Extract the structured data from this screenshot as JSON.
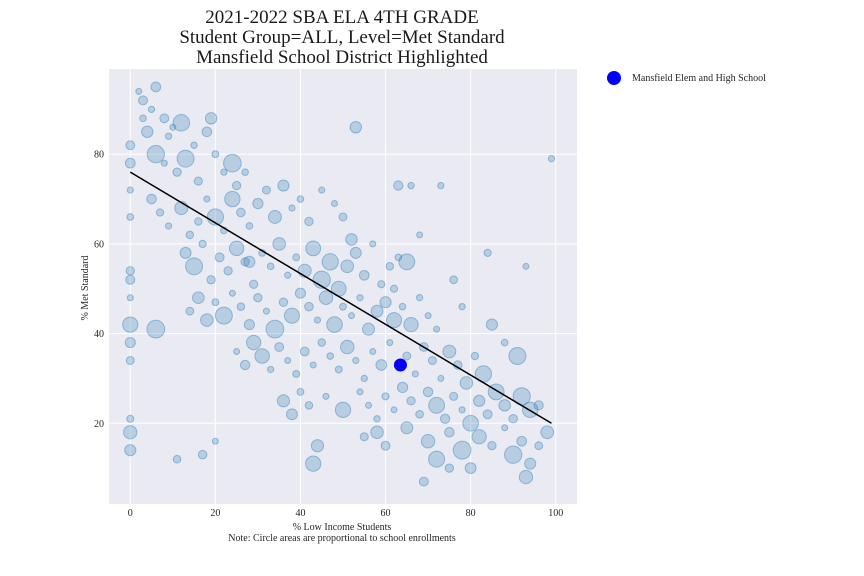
{
  "chart_data": {
    "type": "scatter",
    "title_lines": [
      "2021-2022 SBA ELA 4TH GRADE",
      "Student Group=ALL, Level=Met Standard",
      "Mansfield School District Highlighted"
    ],
    "xlabel": "% Low Income Students",
    "note": "Note: Circle areas are proportional to school enrollments",
    "ylabel": "% Met Standard",
    "xlim": [
      -5,
      105
    ],
    "ylim": [
      2,
      99
    ],
    "xticks": [
      0,
      20,
      40,
      60,
      80,
      100
    ],
    "yticks": [
      20,
      40,
      60,
      80
    ],
    "grid": true,
    "legend_position": "outside-right-top",
    "colors": {
      "background": "#eaeaf2",
      "grid": "#ffffff",
      "points": "#1f77b4",
      "highlight": "#0000ff",
      "trendline": "#000000"
    },
    "trendline": {
      "x": [
        0,
        99
      ],
      "y": [
        76,
        20
      ]
    },
    "highlight": {
      "name": "Mansfield Elem and High School",
      "x": 63.5,
      "y": 33
    },
    "series": [
      {
        "points": [
          [
            0,
            82
          ],
          [
            0,
            78
          ],
          [
            0,
            72
          ],
          [
            0,
            66
          ],
          [
            0,
            54
          ],
          [
            0,
            52
          ],
          [
            0,
            48
          ],
          [
            0,
            42
          ],
          [
            0,
            38
          ],
          [
            0,
            34
          ],
          [
            0,
            21
          ],
          [
            0,
            18
          ],
          [
            0,
            14
          ],
          [
            2,
            94
          ],
          [
            3,
            92
          ],
          [
            3,
            88
          ],
          [
            4,
            85
          ],
          [
            5,
            90
          ],
          [
            6,
            95
          ],
          [
            8,
            88
          ],
          [
            9,
            84
          ],
          [
            10,
            86
          ],
          [
            12,
            87
          ],
          [
            6,
            80
          ],
          [
            8,
            78
          ],
          [
            11,
            76
          ],
          [
            13,
            79
          ],
          [
            15,
            82
          ],
          [
            16,
            74
          ],
          [
            18,
            85
          ],
          [
            19,
            88
          ],
          [
            20,
            80
          ],
          [
            22,
            76
          ],
          [
            24,
            78
          ],
          [
            25,
            73
          ],
          [
            27,
            76
          ],
          [
            5,
            70
          ],
          [
            7,
            67
          ],
          [
            9,
            64
          ],
          [
            12,
            68
          ],
          [
            14,
            62
          ],
          [
            16,
            65
          ],
          [
            18,
            70
          ],
          [
            20,
            66
          ],
          [
            22,
            63
          ],
          [
            24,
            70
          ],
          [
            26,
            67
          ],
          [
            28,
            64
          ],
          [
            30,
            69
          ],
          [
            32,
            72
          ],
          [
            34,
            66
          ],
          [
            36,
            73
          ],
          [
            38,
            68
          ],
          [
            40,
            70
          ],
          [
            42,
            65
          ],
          [
            45,
            72
          ],
          [
            48,
            69
          ],
          [
            50,
            66
          ],
          [
            52,
            61
          ],
          [
            13,
            58
          ],
          [
            15,
            55
          ],
          [
            17,
            60
          ],
          [
            19,
            52
          ],
          [
            21,
            57
          ],
          [
            23,
            54
          ],
          [
            25,
            59
          ],
          [
            27,
            56
          ],
          [
            29,
            51
          ],
          [
            31,
            58
          ],
          [
            33,
            55
          ],
          [
            35,
            60
          ],
          [
            37,
            53
          ],
          [
            39,
            57
          ],
          [
            41,
            54
          ],
          [
            43,
            59
          ],
          [
            45,
            52
          ],
          [
            47,
            56
          ],
          [
            49,
            50
          ],
          [
            51,
            55
          ],
          [
            53,
            58
          ],
          [
            55,
            53
          ],
          [
            57,
            60
          ],
          [
            59,
            51
          ],
          [
            61,
            55
          ],
          [
            63,
            57
          ],
          [
            14,
            45
          ],
          [
            16,
            48
          ],
          [
            18,
            43
          ],
          [
            20,
            47
          ],
          [
            22,
            44
          ],
          [
            24,
            49
          ],
          [
            26,
            46
          ],
          [
            28,
            42
          ],
          [
            30,
            48
          ],
          [
            32,
            45
          ],
          [
            34,
            41
          ],
          [
            36,
            47
          ],
          [
            38,
            44
          ],
          [
            40,
            49
          ],
          [
            42,
            46
          ],
          [
            44,
            43
          ],
          [
            46,
            48
          ],
          [
            48,
            42
          ],
          [
            50,
            46
          ],
          [
            52,
            44
          ],
          [
            54,
            48
          ],
          [
            56,
            41
          ],
          [
            58,
            45
          ],
          [
            60,
            47
          ],
          [
            62,
            43
          ],
          [
            64,
            46
          ],
          [
            66,
            42
          ],
          [
            68,
            48
          ],
          [
            70,
            44
          ],
          [
            72,
            41
          ],
          [
            25,
            36
          ],
          [
            27,
            33
          ],
          [
            29,
            38
          ],
          [
            31,
            35
          ],
          [
            33,
            32
          ],
          [
            35,
            37
          ],
          [
            37,
            34
          ],
          [
            39,
            31
          ],
          [
            41,
            36
          ],
          [
            43,
            33
          ],
          [
            45,
            38
          ],
          [
            47,
            35
          ],
          [
            49,
            32
          ],
          [
            51,
            37
          ],
          [
            53,
            34
          ],
          [
            55,
            30
          ],
          [
            57,
            36
          ],
          [
            59,
            33
          ],
          [
            61,
            38
          ],
          [
            65,
            35
          ],
          [
            67,
            31
          ],
          [
            69,
            37
          ],
          [
            71,
            34
          ],
          [
            73,
            30
          ],
          [
            75,
            36
          ],
          [
            77,
            33
          ],
          [
            79,
            29
          ],
          [
            81,
            35
          ],
          [
            83,
            31
          ],
          [
            36,
            25
          ],
          [
            38,
            22
          ],
          [
            40,
            27
          ],
          [
            42,
            24
          ],
          [
            46,
            26
          ],
          [
            50,
            23
          ],
          [
            54,
            27
          ],
          [
            56,
            24
          ],
          [
            58,
            21
          ],
          [
            60,
            26
          ],
          [
            62,
            23
          ],
          [
            64,
            28
          ],
          [
            66,
            25
          ],
          [
            68,
            22
          ],
          [
            70,
            27
          ],
          [
            72,
            24
          ],
          [
            74,
            21
          ],
          [
            76,
            26
          ],
          [
            78,
            23
          ],
          [
            80,
            20
          ],
          [
            82,
            25
          ],
          [
            84,
            22
          ],
          [
            86,
            27
          ],
          [
            88,
            24
          ],
          [
            90,
            21
          ],
          [
            92,
            26
          ],
          [
            94,
            23
          ],
          [
            55,
            17
          ],
          [
            60,
            15
          ],
          [
            65,
            19
          ],
          [
            70,
            16
          ],
          [
            72,
            12
          ],
          [
            75,
            18
          ],
          [
            78,
            14
          ],
          [
            80,
            10
          ],
          [
            82,
            17
          ],
          [
            85,
            15
          ],
          [
            88,
            19
          ],
          [
            90,
            13
          ],
          [
            92,
            16
          ],
          [
            94,
            11
          ],
          [
            96,
            15
          ],
          [
            98,
            18
          ],
          [
            93,
            8
          ],
          [
            69,
            7
          ],
          [
            75,
            10
          ],
          [
            43,
            11
          ],
          [
            44,
            15
          ],
          [
            20,
            16
          ],
          [
            11,
            12
          ],
          [
            17,
            13
          ],
          [
            6,
            41
          ],
          [
            28,
            56
          ],
          [
            99,
            79
          ],
          [
            53,
            86
          ],
          [
            73,
            73
          ],
          [
            66,
            73
          ],
          [
            63,
            73
          ],
          [
            84,
            58
          ],
          [
            93,
            55
          ],
          [
            91,
            35
          ],
          [
            96,
            24
          ],
          [
            68,
            62
          ],
          [
            76,
            52
          ],
          [
            78,
            46
          ],
          [
            85,
            42
          ],
          [
            88,
            38
          ],
          [
            58,
            18
          ],
          [
            62,
            50
          ],
          [
            65,
            56
          ]
        ]
      }
    ]
  }
}
